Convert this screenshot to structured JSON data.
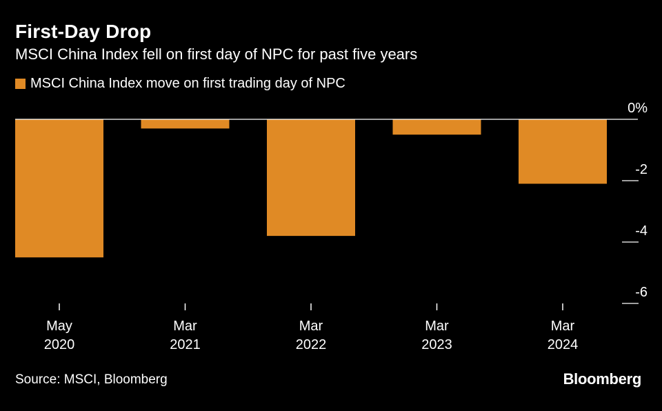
{
  "title": "First-Day Drop",
  "subtitle": "MSCI China Index fell on first day of NPC for past five years",
  "source": "Source: MSCI, Bloomberg",
  "brand": "Bloomberg",
  "colors": {
    "bar": "#E08A25",
    "background": "#000000",
    "text": "#ffffff",
    "axis": "#ffffff"
  },
  "chart_data": {
    "type": "bar",
    "title": "First-Day Drop",
    "subtitle": "MSCI China Index fell on first day of NPC for past five years",
    "xlabel": "",
    "ylabel": "",
    "ylim": [
      -6,
      0
    ],
    "y_ticks": [
      0,
      -2,
      -4,
      -6
    ],
    "y_tick_labels": [
      "0%",
      "-2",
      "-4",
      "-6"
    ],
    "grid": false,
    "legend_position": "top-left",
    "categories": [
      [
        "May",
        "2020"
      ],
      [
        "Mar",
        "2021"
      ],
      [
        "Mar",
        "2022"
      ],
      [
        "Mar",
        "2023"
      ],
      [
        "Mar",
        "2024"
      ]
    ],
    "series": [
      {
        "name": "MSCI China Index move on first trading day of NPC",
        "values": [
          -4.5,
          -0.3,
          -3.8,
          -0.5,
          -2.1
        ]
      }
    ]
  }
}
